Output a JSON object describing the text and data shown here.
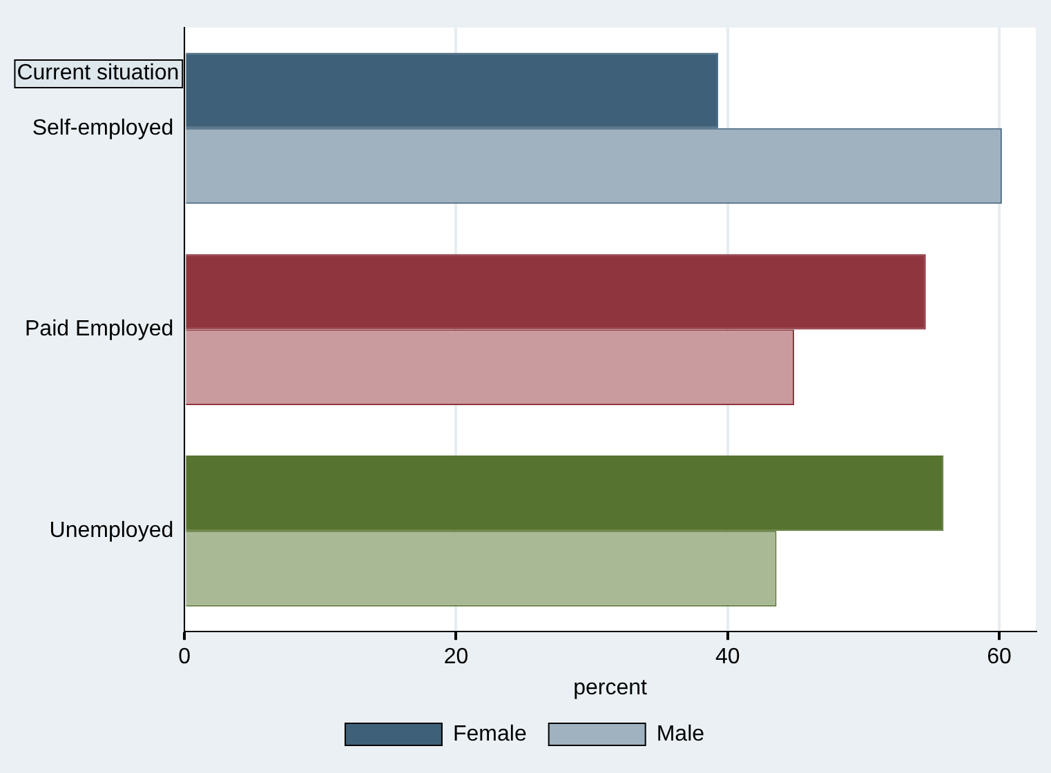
{
  "chart_data": {
    "type": "bar",
    "orientation": "horizontal",
    "ylabel": "Current situation",
    "xlabel": "percent",
    "categories": [
      "Self-employed",
      "Paid Employed",
      "Unemployed"
    ],
    "series": [
      {
        "name": "Female",
        "colors": [
          "#3e6079",
          "#8e353e",
          "#56732f"
        ],
        "values": [
          39.3,
          54.6,
          55.9
        ]
      },
      {
        "name": "Male",
        "colors": [
          "#a0b2bf",
          "#c99a9e",
          "#aab995"
        ],
        "values": [
          60.2,
          44.9,
          43.6
        ]
      }
    ],
    "xlim": [
      0,
      62.7
    ],
    "xticks": [
      0,
      20,
      40,
      60
    ],
    "grid": "x",
    "legend": "bottom"
  }
}
